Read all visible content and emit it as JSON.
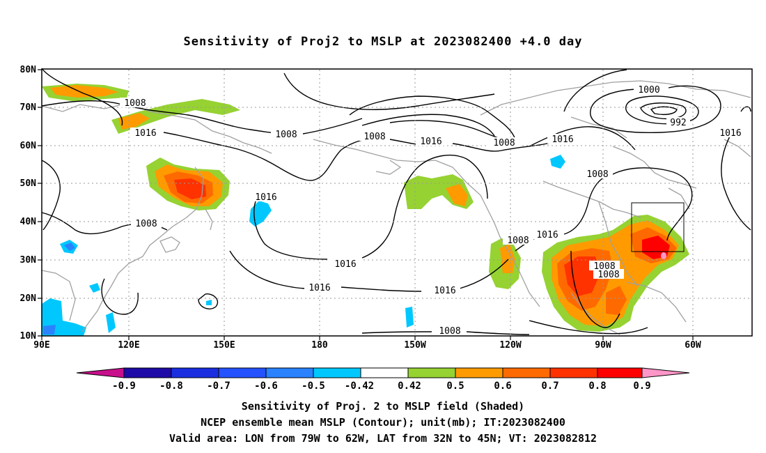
{
  "title": "Sensitivity of Proj2 to MSLP at 2023082400 +4.0 day",
  "captions": {
    "line1": "Sensitivity of Proj. 2 to MSLP field (Shaded)",
    "line2": "NCEP ensemble mean MSLP (Contour); unit(mb); IT:2023082400",
    "line3": "Valid area: LON from 79W to 62W, LAT from 32N to 45N; VT: 2023082812"
  },
  "map": {
    "lat_ticks": [
      "80N",
      "70N",
      "60N",
      "50N",
      "40N",
      "30N",
      "20N",
      "10N"
    ],
    "lon_ticks": [
      "90E",
      "120E",
      "150E",
      "180",
      "150W",
      "120W",
      "90W",
      "60W"
    ],
    "contour_labels": [
      "1008",
      "1016",
      "1008",
      "1008",
      "1016",
      "1008",
      "1016",
      "1000",
      "992",
      "1016",
      "1008",
      "1016",
      "1008",
      "1016",
      "1016",
      "1008",
      "1016",
      "1008",
      "1008",
      "1016",
      "1008"
    ],
    "valid_box": {
      "lon_from": "79W",
      "lon_to": "62W",
      "lat_from": "32N",
      "lat_to": "45N"
    }
  },
  "colorbar": {
    "labels": [
      "-0.9",
      "-0.8",
      "-0.7",
      "-0.6",
      "-0.5",
      "-0.42",
      "0.42",
      "0.5",
      "0.6",
      "0.7",
      "0.8",
      "0.9"
    ],
    "colors": [
      "#c8108c",
      "#1e0aa6",
      "#1a2ee0",
      "#2452ff",
      "#2a82ff",
      "#00c8ff",
      "#ffffff",
      "#96d232",
      "#ff9b00",
      "#ff6a00",
      "#ff3200",
      "#ff0000",
      "#ff96c8"
    ]
  }
}
